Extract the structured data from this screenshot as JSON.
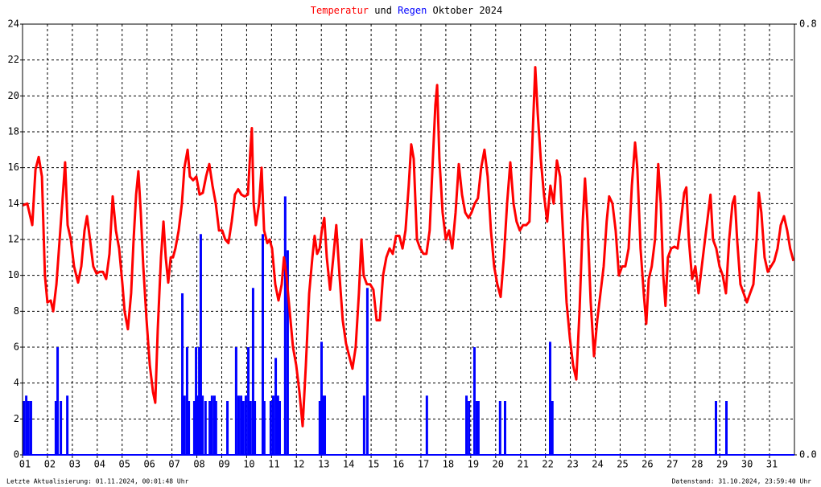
{
  "chart_data": {
    "type": "line_bar",
    "title_connector": "und",
    "title_suffix": "Oktober 2024",
    "footer_left": "Letzte Aktualisierung: 01.11.2024, 00:01:48 Uhr",
    "footer_right": "Datenstand: 31.10.2024, 23:59:40 Uhr",
    "grid": true,
    "xlim": [
      1,
      32
    ],
    "xticks": [
      {
        "value": 1,
        "label": "01"
      },
      {
        "value": 2,
        "label": "02"
      },
      {
        "value": 3,
        "label": "03"
      },
      {
        "value": 4,
        "label": "04"
      },
      {
        "value": 5,
        "label": "05"
      },
      {
        "value": 6,
        "label": "06"
      },
      {
        "value": 7,
        "label": "07"
      },
      {
        "value": 8,
        "label": "08"
      },
      {
        "value": 9,
        "label": "09"
      },
      10,
      11,
      12,
      13,
      14,
      15,
      16,
      17,
      18,
      19,
      20,
      21,
      22,
      23,
      24,
      25,
      26,
      27,
      28,
      29,
      30,
      31
    ],
    "ylim": [
      0,
      24
    ],
    "yticks": [
      0,
      2,
      4,
      6,
      8,
      10,
      12,
      14,
      16,
      18,
      20,
      22,
      24
    ],
    "y2lim": [
      0,
      0.8
    ],
    "y2ticks": [
      {
        "value": 0,
        "label": "0.0"
      },
      {
        "value": 0.8,
        "label": "0.8"
      }
    ],
    "series": [
      {
        "name": "Temperatur",
        "color": "#ff0000",
        "kind": "line",
        "x": [
          1.0,
          1.19,
          1.39,
          1.52,
          1.65,
          1.78,
          1.9,
          2.0,
          2.13,
          2.23,
          2.36,
          2.49,
          2.62,
          2.71,
          2.81,
          2.94,
          3.07,
          3.23,
          3.36,
          3.49,
          3.59,
          3.71,
          3.84,
          3.97,
          4.1,
          4.23,
          4.36,
          4.49,
          4.62,
          4.75,
          4.88,
          5.01,
          5.1,
          5.23,
          5.36,
          5.46,
          5.56,
          5.65,
          5.75,
          5.85,
          5.98,
          6.11,
          6.24,
          6.33,
          6.43,
          6.56,
          6.66,
          6.75,
          6.85,
          6.95,
          7.04,
          7.14,
          7.27,
          7.4,
          7.5,
          7.63,
          7.72,
          7.85,
          7.98,
          8.11,
          8.24,
          8.37,
          8.5,
          8.63,
          8.76,
          8.89,
          9.02,
          9.14,
          9.27,
          9.4,
          9.53,
          9.66,
          9.79,
          9.92,
          10.05,
          10.15,
          10.21,
          10.28,
          10.37,
          10.5,
          10.6,
          10.7,
          10.83,
          10.92,
          11.02,
          11.15,
          11.28,
          11.41,
          11.5,
          11.6,
          11.73,
          11.86,
          11.99,
          12.12,
          12.25,
          12.38,
          12.51,
          12.64,
          12.73,
          12.83,
          12.93,
          13.02,
          13.12,
          13.22,
          13.35,
          13.48,
          13.6,
          13.73,
          13.86,
          13.99,
          14.12,
          14.25,
          14.38,
          14.51,
          14.61,
          14.7,
          14.83,
          14.96,
          15.09,
          15.22,
          15.35,
          15.48,
          15.61,
          15.74,
          15.87,
          16.0,
          16.13,
          16.26,
          16.38,
          16.51,
          16.61,
          16.71,
          16.84,
          16.97,
          17.1,
          17.22,
          17.35,
          17.48,
          17.58,
          17.65,
          17.74,
          17.87,
          18.0,
          18.13,
          18.26,
          18.39,
          18.52,
          18.65,
          18.78,
          18.91,
          19.03,
          19.16,
          19.29,
          19.42,
          19.55,
          19.68,
          19.81,
          19.94,
          20.07,
          20.2,
          20.33,
          20.46,
          20.59,
          20.72,
          20.84,
          20.97,
          21.1,
          21.23,
          21.36,
          21.49,
          21.59,
          21.69,
          21.81,
          21.94,
          22.07,
          22.2,
          22.33,
          22.46,
          22.59,
          22.72,
          22.85,
          22.98,
          23.11,
          23.24,
          23.37,
          23.5,
          23.59,
          23.69,
          23.82,
          23.95,
          24.08,
          24.21,
          24.34,
          24.46,
          24.56,
          24.69,
          24.82,
          24.95,
          25.08,
          25.21,
          25.34,
          25.47,
          25.6,
          25.69,
          25.82,
          25.95,
          26.05,
          26.15,
          26.27,
          26.4,
          26.53,
          26.63,
          26.73,
          26.82,
          26.92,
          27.05,
          27.18,
          27.31,
          27.44,
          27.57,
          27.66,
          27.76,
          27.89,
          28.02,
          28.15,
          28.28,
          28.41,
          28.54,
          28.63,
          28.73,
          28.86,
          28.99,
          29.12,
          29.25,
          29.38,
          29.51,
          29.6,
          29.7,
          29.83,
          29.96,
          30.09,
          30.22,
          30.35,
          30.48,
          30.57,
          30.67,
          30.8,
          30.93,
          31.06,
          31.19,
          31.32,
          31.45,
          31.58,
          31.71,
          31.83,
          31.96
        ],
        "values": [
          13.9,
          14.0,
          12.8,
          15.9,
          16.6,
          15.5,
          10,
          8.5,
          8.6,
          8.0,
          9.5,
          12,
          14.5,
          16.3,
          12.8,
          12,
          10.5,
          9.6,
          10.5,
          12.5,
          13.3,
          12,
          10.5,
          10.1,
          10.2,
          10.2,
          9.8,
          11.2,
          14.4,
          12.5,
          11.5,
          9.5,
          8,
          7.0,
          9,
          12,
          14.5,
          15.8,
          13.5,
          10.5,
          7.5,
          5,
          3.5,
          2.9,
          7,
          11,
          13,
          11,
          9.6,
          11,
          11,
          11.5,
          12.5,
          14,
          16,
          17,
          15.5,
          15.3,
          15.5,
          14.5,
          14.6,
          15.5,
          16.2,
          15,
          14,
          12.5,
          12.5,
          12,
          11.8,
          13,
          14.5,
          14.8,
          14.5,
          14.4,
          14.5,
          17,
          18.2,
          14,
          12.8,
          14,
          16,
          12.5,
          11.8,
          12,
          11.5,
          9.5,
          8.6,
          9.5,
          11,
          10,
          8,
          6,
          5,
          3.5,
          1.6,
          5,
          9,
          11,
          12.2,
          11.2,
          11.5,
          12.5,
          13.2,
          11,
          9.2,
          11,
          12.8,
          10,
          7.5,
          6.2,
          5.5,
          4.8,
          6,
          9,
          12,
          10,
          9.5,
          9.5,
          9.2,
          7.5,
          7.5,
          10,
          11,
          11.5,
          11.2,
          12.2,
          12.2,
          11.5,
          12.5,
          15,
          17.3,
          16.5,
          12,
          11.5,
          11.2,
          11.2,
          12.5,
          16.5,
          19.5,
          20.6,
          16.5,
          13.5,
          12,
          12.5,
          11.5,
          13.5,
          16.2,
          14.5,
          13.5,
          13.2,
          13.5,
          14,
          14.3,
          16,
          17,
          15.5,
          12.5,
          10.5,
          9.5,
          8.8,
          11,
          14,
          16.3,
          14,
          13,
          12.5,
          12.8,
          12.8,
          13,
          18,
          21.6,
          19,
          16.5,
          14.5,
          13,
          15,
          14,
          16.4,
          15.5,
          12,
          8.5,
          6.5,
          5,
          4.2,
          8,
          13,
          15.4,
          13,
          8.5,
          5.5,
          7.5,
          9,
          10.5,
          13,
          14.4,
          14,
          12.5,
          10,
          10.5,
          10.5,
          11.5,
          15,
          17.4,
          16,
          11.5,
          9,
          7.3,
          9.8,
          10.5,
          12,
          16.2,
          14,
          10,
          8.3,
          11,
          11.5,
          11.6,
          11.5,
          13,
          14.6,
          14.9,
          12,
          9.8,
          10.5,
          9.0,
          10.5,
          12,
          13.5,
          14.5,
          12,
          11.5,
          10.5,
          10,
          9,
          12,
          14,
          14.4,
          12,
          9.5,
          9,
          8.5,
          9,
          9.5,
          12,
          14.6,
          13.5,
          11,
          10.2,
          10.5,
          10.8,
          11.5,
          12.8,
          13.3,
          12.5,
          11.5,
          10.8
        ]
      },
      {
        "name": "Regen",
        "color": "#0000ff",
        "kind": "bar",
        "axis": "y2",
        "x": [
          1.0,
          1.1,
          1.19,
          1.29,
          2.29,
          2.36,
          2.49,
          2.75,
          7.37,
          7.46,
          7.56,
          7.63,
          7.85,
          7.92,
          7.98,
          8.05,
          8.11,
          8.18,
          8.3,
          8.47,
          8.56,
          8.66,
          8.72,
          9.18,
          9.53,
          9.63,
          9.73,
          9.82,
          9.92,
          10.02,
          10.11,
          10.21,
          10.28,
          10.6,
          10.66,
          10.92,
          11.02,
          11.12,
          11.21,
          11.28,
          11.5,
          11.6,
          12.89,
          12.96,
          13.02,
          13.09,
          14.67,
          14.8,
          17.19,
          18.78,
          18.88,
          19.1,
          19.2,
          19.26,
          20.13,
          20.33,
          22.14,
          22.23,
          28.8,
          29.22
        ],
        "values": [
          0.1,
          0.11,
          0.1,
          0.1,
          0.1,
          0.2,
          0.1,
          0.11,
          0.3,
          0.11,
          0.2,
          0.1,
          0.1,
          0.2,
          0.11,
          0.2,
          0.41,
          0.11,
          0.1,
          0.1,
          0.11,
          0.11,
          0.1,
          0.1,
          0.2,
          0.11,
          0.11,
          0.1,
          0.11,
          0.2,
          0.1,
          0.31,
          0.1,
          0.41,
          0.1,
          0.1,
          0.11,
          0.18,
          0.11,
          0.1,
          0.48,
          0.38,
          0.1,
          0.21,
          0.11,
          0.11,
          0.11,
          0.31,
          0.11,
          0.11,
          0.1,
          0.2,
          0.1,
          0.1,
          0.1,
          0.1,
          0.21,
          0.1,
          0.1,
          0.1
        ]
      }
    ]
  }
}
